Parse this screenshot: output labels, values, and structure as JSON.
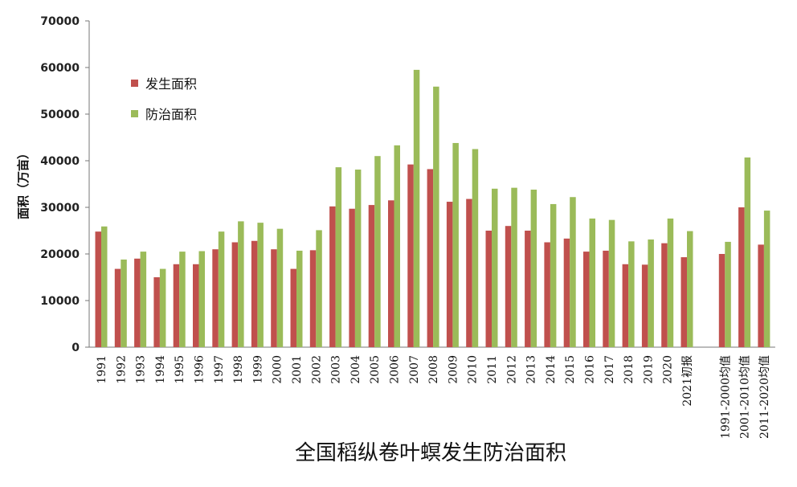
{
  "chart_data": {
    "type": "bar",
    "title": "全国稻纵卷叶螟发生防治面积",
    "ylabel": "面积（万亩）",
    "xlabel": "",
    "ylim": [
      0,
      70000
    ],
    "yticks": [
      0,
      10000,
      20000,
      30000,
      40000,
      50000,
      60000,
      70000
    ],
    "grid": false,
    "legend_position": "top-left",
    "categories": [
      "1991",
      "1992",
      "1993",
      "1994",
      "1995",
      "1996",
      "1997",
      "1998",
      "1999",
      "2000",
      "2001",
      "2002",
      "2003",
      "2004",
      "2005",
      "2006",
      "2007",
      "2008",
      "2009",
      "2010",
      "2011",
      "2012",
      "2013",
      "2014",
      "2015",
      "2016",
      "2017",
      "2018",
      "2019",
      "2020",
      "2021初报",
      "1991-2000均值",
      "2001-2010均值",
      "2011-2020均值"
    ],
    "series": [
      {
        "name": "发生面积",
        "color": "#C0504D",
        "values": [
          24800,
          16800,
          19000,
          15000,
          17800,
          17800,
          21000,
          22500,
          22800,
          21000,
          16800,
          20800,
          30200,
          29700,
          30500,
          31500,
          39200,
          38200,
          31200,
          31800,
          25000,
          26000,
          25000,
          22500,
          23300,
          20500,
          20700,
          17800,
          17700,
          22300,
          19300,
          20000,
          30000,
          22000
        ]
      },
      {
        "name": "防治面积",
        "color": "#9BBB59",
        "values": [
          25900,
          18800,
          20500,
          16800,
          20500,
          20600,
          24800,
          27000,
          26700,
          25400,
          20700,
          25100,
          38600,
          38100,
          41000,
          43300,
          59500,
          55900,
          43800,
          42500,
          34000,
          34200,
          33800,
          30700,
          32200,
          27600,
          27300,
          22700,
          23100,
          27600,
          24900,
          22600,
          40700,
          29300
        ]
      }
    ]
  }
}
